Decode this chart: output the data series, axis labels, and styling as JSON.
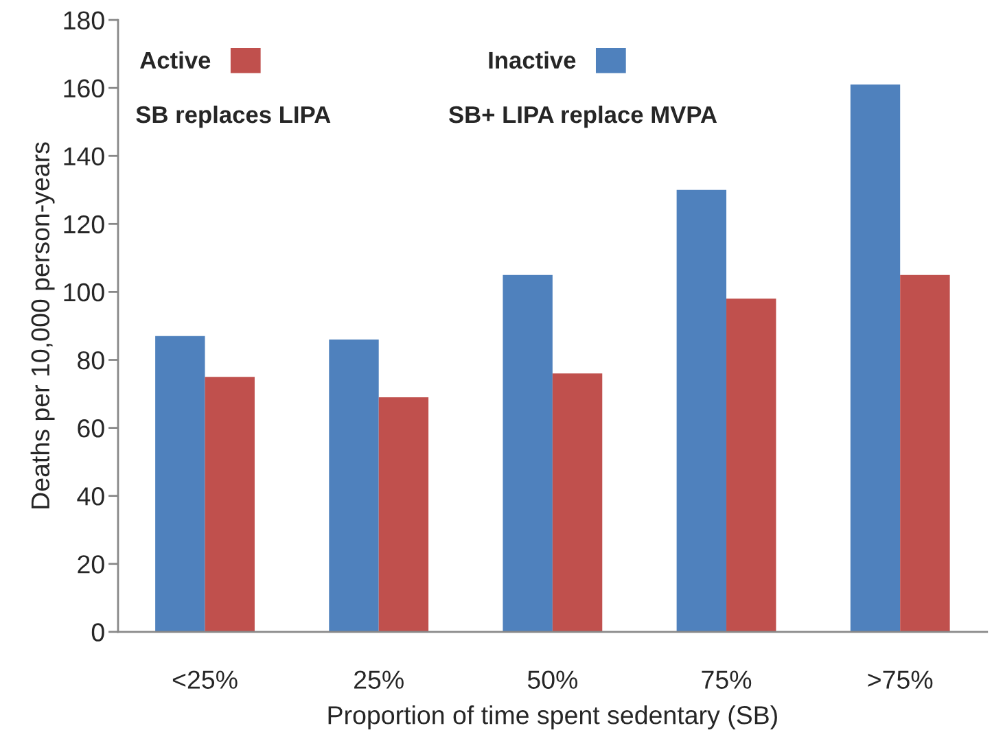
{
  "chart_data": {
    "type": "bar",
    "xlabel": "Proportion of time spent sedentary (SB)",
    "ylabel": "Deaths per 10,000 person-years",
    "categories": [
      "<25%",
      "25%",
      "50%",
      "75%",
      ">75%"
    ],
    "series": [
      {
        "name": "Inactive",
        "color": "#4f81bd",
        "values": [
          87,
          86,
          105,
          130,
          161
        ]
      },
      {
        "name": "Active",
        "color": "#c0504d",
        "values": [
          75,
          69,
          76,
          98,
          105
        ]
      }
    ],
    "ylim": [
      0,
      180
    ],
    "yticks": [
      0,
      20,
      40,
      60,
      80,
      100,
      120,
      140,
      160,
      180
    ],
    "annotations": [
      "SB replaces LIPA",
      "SB+ LIPA replace MVPA"
    ],
    "legend": "top left",
    "grid": false
  }
}
